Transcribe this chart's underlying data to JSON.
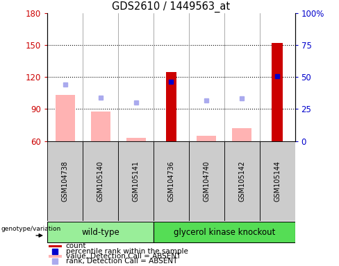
{
  "title": "GDS2610 / 1449563_at",
  "samples": [
    "GSM104738",
    "GSM105140",
    "GSM105141",
    "GSM104736",
    "GSM104740",
    "GSM105142",
    "GSM105144"
  ],
  "ylim_left": [
    60,
    180
  ],
  "ylim_right": [
    0,
    100
  ],
  "yticks_left": [
    60,
    90,
    120,
    150,
    180
  ],
  "yticks_right": [
    0,
    25,
    50,
    75,
    100
  ],
  "yticklabels_right": [
    "0",
    "25",
    "50",
    "75",
    "100%"
  ],
  "bar_color_absent": "#ffb3b3",
  "bar_color_present_dark": "#cc0000",
  "rank_dot_absent": "#aaaaee",
  "rank_dot_present": "#0000cc",
  "count_values": [
    null,
    null,
    null,
    125,
    null,
    null,
    152
  ],
  "value_absent": [
    103,
    88,
    63,
    null,
    65,
    72,
    null
  ],
  "rank_absent": [
    113,
    101,
    96,
    null,
    98,
    100,
    null
  ],
  "rank_present": [
    null,
    null,
    null,
    116,
    null,
    null,
    121
  ],
  "left_label_color": "#cc0000",
  "right_label_color": "#0000cc",
  "group_wt_color": "#99ee99",
  "group_gk_color": "#55dd55",
  "sample_box_color": "#cccccc",
  "legend_items": [
    {
      "label": "count",
      "color": "#cc0000",
      "type": "bar"
    },
    {
      "label": "percentile rank within the sample",
      "color": "#0000cc",
      "type": "dot"
    },
    {
      "label": "value, Detection Call = ABSENT",
      "color": "#ffb3b3",
      "type": "bar"
    },
    {
      "label": "rank, Detection Call = ABSENT",
      "color": "#aaaaee",
      "type": "dot"
    }
  ]
}
